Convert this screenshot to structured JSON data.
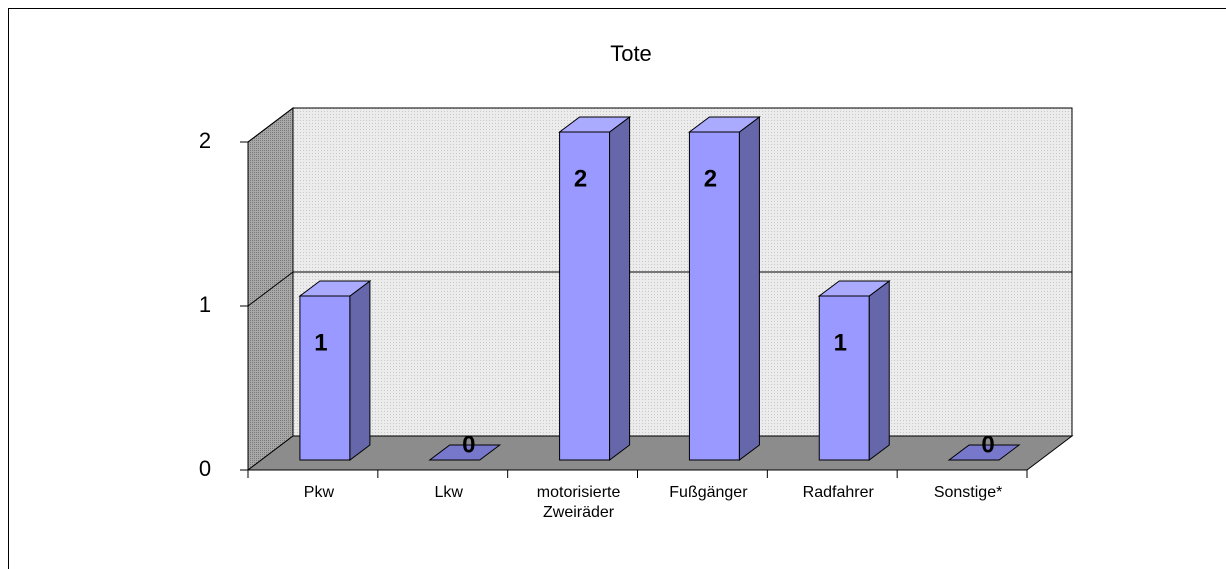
{
  "chart_data": {
    "type": "bar3d",
    "title": "Tote",
    "categories": [
      "Pkw",
      "Lkw",
      "motorisierte Zweiräder",
      "Fußgänger",
      "Radfahrer",
      "Sonstige*"
    ],
    "values": [
      1,
      0,
      2,
      2,
      1,
      0
    ],
    "color": "#9999ff",
    "ylim": [
      0,
      2
    ],
    "yticks": [
      0,
      1,
      2
    ],
    "grid": true
  }
}
